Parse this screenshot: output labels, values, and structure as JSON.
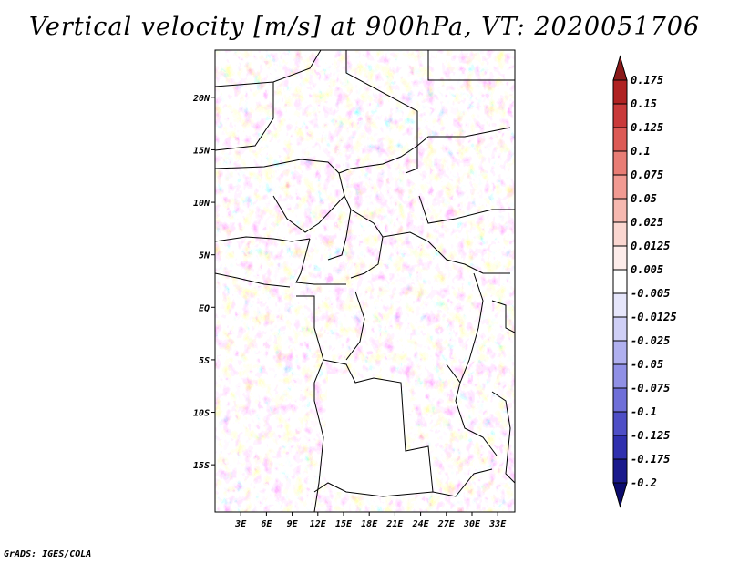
{
  "title": "Vertical velocity [m/s] at 900hPa, VT: 2020051706",
  "credit": "GrADS: IGES/COLA",
  "map": {
    "lat_labels": [
      "20N",
      "15N",
      "10N",
      "5N",
      "EQ",
      "5S",
      "10S",
      "15S"
    ],
    "lat_values": [
      20,
      15,
      10,
      5,
      0,
      -5,
      -10,
      -15
    ],
    "lon_labels": [
      "3E",
      "6E",
      "9E",
      "12E",
      "15E",
      "18E",
      "21E",
      "24E",
      "27E",
      "30E",
      "33E"
    ],
    "lon_values": [
      3,
      6,
      9,
      12,
      15,
      18,
      21,
      24,
      27,
      30,
      33
    ],
    "lon_range": [
      0,
      35
    ],
    "lat_range": [
      -19.5,
      24.5
    ]
  },
  "colorbar": {
    "labels": [
      "0.175",
      "0.15",
      "0.125",
      "0.1",
      "0.075",
      "0.05",
      "0.025",
      "0.0125",
      "0.005",
      "-0.005",
      "-0.0125",
      "-0.025",
      "-0.05",
      "-0.075",
      "-0.1",
      "-0.125",
      "-0.175",
      "-0.2"
    ],
    "colors": [
      "#8b1a1a",
      "#b02222",
      "#c93a3a",
      "#dc5a55",
      "#e87d75",
      "#f19a92",
      "#f6b8b0",
      "#fad6d0",
      "#fdecea",
      "#ffffff",
      "#e6e6fb",
      "#cfcff6",
      "#b0b0ef",
      "#9090e6",
      "#6f6fd8",
      "#4f4fc6",
      "#3030ae",
      "#1a1a8c",
      "#0c0c6e"
    ]
  }
}
